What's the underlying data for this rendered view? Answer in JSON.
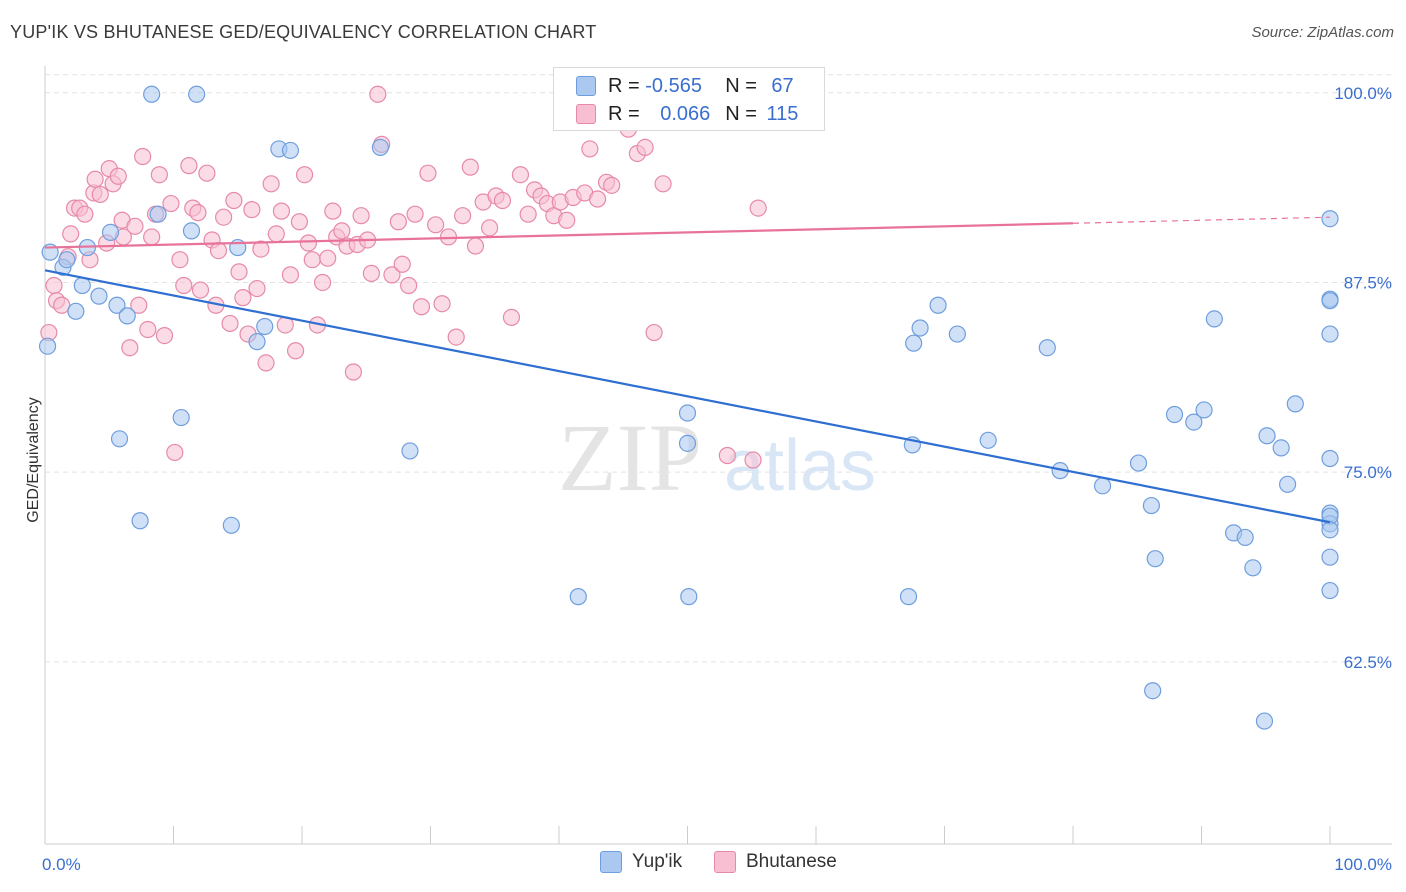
{
  "header": {
    "title": "YUP'IK VS BHUTANESE GED/EQUIVALENCY CORRELATION CHART",
    "source": "Source: ZipAtlas.com"
  },
  "legend_top": {
    "r_label": "R =",
    "n_label": "N =",
    "rows": [
      {
        "r": "-0.565",
        "n": "67"
      },
      {
        "r": "0.066",
        "n": "115"
      }
    ]
  },
  "legend_bottom": [
    "Yup'ik",
    "Bhutanese"
  ],
  "watermark": {
    "zip": "ZIP",
    "atlas": "atlas"
  },
  "colors": {
    "blue_fill": "#aac8f0",
    "blue_stroke": "#6f9ede",
    "blue_line": "#2f6fd1",
    "pink_fill": "#f7bfd1",
    "pink_stroke": "#e68aa8",
    "pink_line": "#e8739a",
    "tick_label": "#3a6fcf"
  },
  "chart_data": {
    "type": "scatter",
    "title": "YUP'IK VS BHUTANESE GED/EQUIVALENCY CORRELATION CHART",
    "xlabel": "",
    "ylabel": "GED/Equivalency",
    "xlim": [
      0,
      100
    ],
    "ylim": [
      50.5,
      101.5
    ],
    "x_tick_labels": [
      "0.0%",
      "100.0%"
    ],
    "y_ticks": [
      62.5,
      75.0,
      87.5,
      100.0
    ],
    "y_tick_labels": [
      "62.5%",
      "75.0%",
      "87.5%",
      "100.0%"
    ],
    "grid": true,
    "legend_position": "top-center",
    "series": [
      {
        "name": "Yup'ik",
        "trend": {
          "x": [
            0,
            100
          ],
          "y": [
            88.3,
            71.7
          ]
        },
        "points": [
          [
            0.2,
            83.3
          ],
          [
            0.4,
            89.5
          ],
          [
            1.4,
            88.5
          ],
          [
            1.7,
            89.0
          ],
          [
            2.4,
            85.6
          ],
          [
            2.9,
            87.3
          ],
          [
            3.3,
            89.8
          ],
          [
            4.2,
            86.6
          ],
          [
            5.1,
            90.8
          ],
          [
            5.6,
            86.0
          ],
          [
            5.8,
            77.2
          ],
          [
            6.4,
            85.3
          ],
          [
            7.4,
            71.8
          ],
          [
            8.3,
            99.9
          ],
          [
            8.8,
            92.0
          ],
          [
            10.6,
            78.6
          ],
          [
            11.4,
            90.9
          ],
          [
            11.8,
            99.9
          ],
          [
            14.5,
            71.5
          ],
          [
            15.0,
            89.8
          ],
          [
            16.5,
            83.6
          ],
          [
            17.1,
            84.6
          ],
          [
            18.2,
            96.3
          ],
          [
            19.1,
            96.2
          ],
          [
            26.1,
            96.4
          ],
          [
            28.4,
            76.4
          ],
          [
            41.5,
            66.8
          ],
          [
            50.1,
            66.8
          ],
          [
            50.0,
            78.9
          ],
          [
            50.0,
            76.9
          ],
          [
            67.2,
            66.8
          ],
          [
            67.5,
            76.8
          ],
          [
            67.6,
            83.5
          ],
          [
            68.1,
            84.5
          ],
          [
            69.5,
            86.0
          ],
          [
            71.0,
            84.1
          ],
          [
            73.4,
            77.1
          ],
          [
            78.0,
            83.2
          ],
          [
            79.0,
            75.1
          ],
          [
            85.1,
            75.6
          ],
          [
            82.3,
            74.1
          ],
          [
            86.1,
            72.8
          ],
          [
            86.2,
            60.6
          ],
          [
            86.4,
            69.3
          ],
          [
            87.9,
            78.8
          ],
          [
            89.4,
            78.3
          ],
          [
            90.2,
            79.1
          ],
          [
            91.0,
            85.1
          ],
          [
            92.5,
            71.0
          ],
          [
            93.4,
            70.7
          ],
          [
            94.0,
            68.7
          ],
          [
            94.9,
            58.6
          ],
          [
            95.1,
            77.4
          ],
          [
            96.2,
            76.6
          ],
          [
            96.7,
            74.2
          ],
          [
            97.3,
            79.5
          ],
          [
            100.0,
            67.2
          ],
          [
            100.0,
            86.4
          ],
          [
            100.0,
            72.3
          ],
          [
            101.0,
            71.6
          ],
          [
            101.1,
            69.4
          ],
          [
            101.3,
            84.1
          ],
          [
            101.3,
            72.1
          ],
          [
            101.5,
            75.9
          ],
          [
            102.2,
            91.7
          ],
          [
            102.6,
            86.3
          ],
          [
            104.0,
            71.2
          ]
        ]
      },
      {
        "name": "Bhutanese",
        "trend": {
          "x": [
            0,
            80
          ],
          "y": [
            89.8,
            91.4
          ]
        },
        "trend_dashed": {
          "x": [
            80,
            100
          ],
          "y": [
            91.4,
            91.8
          ]
        },
        "points": [
          [
            0.3,
            84.2
          ],
          [
            0.7,
            87.3
          ],
          [
            0.9,
            86.3
          ],
          [
            1.3,
            86.0
          ],
          [
            1.8,
            89.2
          ],
          [
            2.0,
            90.7
          ],
          [
            2.3,
            92.4
          ],
          [
            2.7,
            92.4
          ],
          [
            3.1,
            92.0
          ],
          [
            3.5,
            89.0
          ],
          [
            3.8,
            93.4
          ],
          [
            3.9,
            94.3
          ],
          [
            4.3,
            93.3
          ],
          [
            4.8,
            90.1
          ],
          [
            5.0,
            95.0
          ],
          [
            5.3,
            94.0
          ],
          [
            5.7,
            94.5
          ],
          [
            6.0,
            91.6
          ],
          [
            6.1,
            90.5
          ],
          [
            6.6,
            83.2
          ],
          [
            7.0,
            91.2
          ],
          [
            7.3,
            86.0
          ],
          [
            7.6,
            95.8
          ],
          [
            8.0,
            84.4
          ],
          [
            8.3,
            90.5
          ],
          [
            8.6,
            92.0
          ],
          [
            8.9,
            94.6
          ],
          [
            9.3,
            84.0
          ],
          [
            9.8,
            92.7
          ],
          [
            10.1,
            76.3
          ],
          [
            10.5,
            89.0
          ],
          [
            10.8,
            87.3
          ],
          [
            11.2,
            95.2
          ],
          [
            11.5,
            92.4
          ],
          [
            11.9,
            92.1
          ],
          [
            12.1,
            87.0
          ],
          [
            12.6,
            94.7
          ],
          [
            13.0,
            90.3
          ],
          [
            13.3,
            86.0
          ],
          [
            13.5,
            89.6
          ],
          [
            13.9,
            91.8
          ],
          [
            14.4,
            84.8
          ],
          [
            14.7,
            92.9
          ],
          [
            15.1,
            88.2
          ],
          [
            15.4,
            86.5
          ],
          [
            15.8,
            84.1
          ],
          [
            16.1,
            92.3
          ],
          [
            16.5,
            87.1
          ],
          [
            16.8,
            89.7
          ],
          [
            17.2,
            82.2
          ],
          [
            17.6,
            94.0
          ],
          [
            18.0,
            90.7
          ],
          [
            18.4,
            92.2
          ],
          [
            18.7,
            84.7
          ],
          [
            19.1,
            88.0
          ],
          [
            19.5,
            83.0
          ],
          [
            19.8,
            91.5
          ],
          [
            20.2,
            94.6
          ],
          [
            20.5,
            90.1
          ],
          [
            20.8,
            89.0
          ],
          [
            21.2,
            84.7
          ],
          [
            21.6,
            87.5
          ],
          [
            22.0,
            89.1
          ],
          [
            22.4,
            92.2
          ],
          [
            22.7,
            90.5
          ],
          [
            23.1,
            90.9
          ],
          [
            23.5,
            89.9
          ],
          [
            24.0,
            81.6
          ],
          [
            24.3,
            90.0
          ],
          [
            24.6,
            91.9
          ],
          [
            25.1,
            90.3
          ],
          [
            25.4,
            88.1
          ],
          [
            25.9,
            99.9
          ],
          [
            26.2,
            96.6
          ],
          [
            27.0,
            88.0
          ],
          [
            27.5,
            91.5
          ],
          [
            27.8,
            88.7
          ],
          [
            28.3,
            87.3
          ],
          [
            28.8,
            92.0
          ],
          [
            29.3,
            85.9
          ],
          [
            29.8,
            94.7
          ],
          [
            30.4,
            91.3
          ],
          [
            30.9,
            86.1
          ],
          [
            31.4,
            90.5
          ],
          [
            32.0,
            83.9
          ],
          [
            32.5,
            91.9
          ],
          [
            33.1,
            95.1
          ],
          [
            33.5,
            89.9
          ],
          [
            34.1,
            92.8
          ],
          [
            34.6,
            91.1
          ],
          [
            35.1,
            93.2
          ],
          [
            35.6,
            92.9
          ],
          [
            36.3,
            85.2
          ],
          [
            37.0,
            94.6
          ],
          [
            37.6,
            92.0
          ],
          [
            38.1,
            93.6
          ],
          [
            38.6,
            93.2
          ],
          [
            39.1,
            92.7
          ],
          [
            39.6,
            91.9
          ],
          [
            40.1,
            92.8
          ],
          [
            40.6,
            91.6
          ],
          [
            41.1,
            93.1
          ],
          [
            42.0,
            93.4
          ],
          [
            42.4,
            96.3
          ],
          [
            43.0,
            93.0
          ],
          [
            43.7,
            94.1
          ],
          [
            44.1,
            93.9
          ],
          [
            44.9,
            99.8
          ],
          [
            45.4,
            97.6
          ],
          [
            46.1,
            96.0
          ],
          [
            46.7,
            96.4
          ],
          [
            47.4,
            84.2
          ],
          [
            48.1,
            94.0
          ],
          [
            53.1,
            76.1
          ],
          [
            55.1,
            75.8
          ],
          [
            55.5,
            92.4
          ]
        ]
      }
    ]
  }
}
